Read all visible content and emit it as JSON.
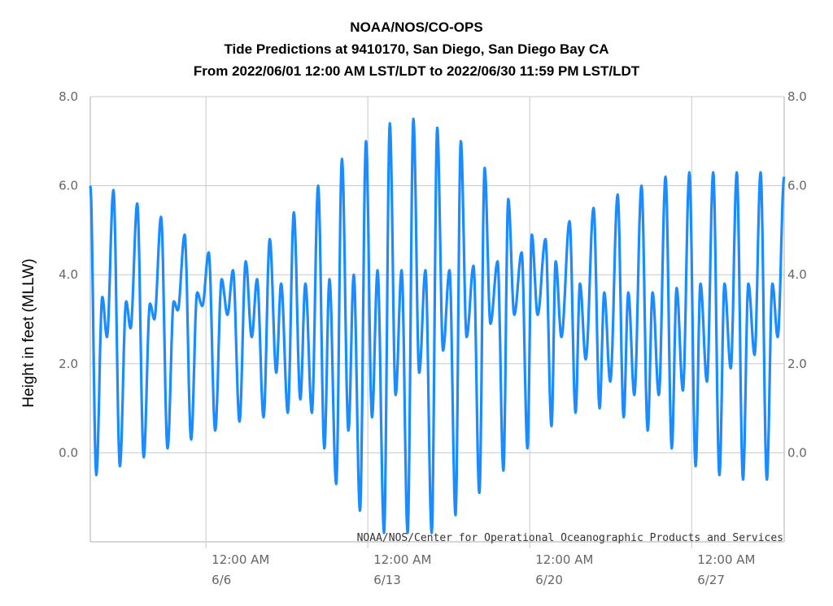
{
  "titles": {
    "line1": "NOAA/NOS/CO-OPS",
    "line2": "Tide Predictions at 9410170, San Diego, San Diego Bay CA",
    "line3": "From 2022/06/01 12:00 AM LST/LDT to 2022/06/30 11:59 PM LST/LDT"
  },
  "credit": "NOAA/NOS/Center for Operational Oceanographic Products and Services",
  "colors": {
    "series": "#1a8cff",
    "grid": "#c8c8c8",
    "axis_text": "#666666"
  },
  "chart_data": {
    "type": "line",
    "title": "Tide Predictions at 9410170, San Diego, San Diego Bay CA",
    "ylabel": "Height in feet (MLLW)",
    "ylim": [
      -2.0,
      8.0
    ],
    "y_ticks": [
      "8.0",
      "6.0",
      "4.0",
      "2.0",
      "0.0"
    ],
    "y_tick_values": [
      8,
      6,
      4,
      2,
      0
    ],
    "x_range_days": [
      1,
      31
    ],
    "x_ticks": [
      {
        "day": 6,
        "time": "12:00 AM",
        "date": "6/6"
      },
      {
        "day": 13,
        "time": "12:00 AM",
        "date": "6/13"
      },
      {
        "day": 20,
        "time": "12:00 AM",
        "date": "6/20"
      },
      {
        "day": 27,
        "time": "12:00 AM",
        "date": "6/27"
      }
    ],
    "grid": true,
    "series": [
      {
        "color": "#1a8cff",
        "extrema": [
          [
            1.0,
            6.0
          ],
          [
            1.26,
            -0.5
          ],
          [
            1.52,
            3.5
          ],
          [
            1.72,
            2.6
          ],
          [
            2.0,
            5.9
          ],
          [
            2.28,
            -0.3
          ],
          [
            2.55,
            3.4
          ],
          [
            2.74,
            2.8
          ],
          [
            3.03,
            5.6
          ],
          [
            3.31,
            -0.1
          ],
          [
            3.58,
            3.35
          ],
          [
            3.77,
            3.0
          ],
          [
            4.06,
            5.3
          ],
          [
            4.34,
            0.1
          ],
          [
            4.61,
            3.4
          ],
          [
            4.78,
            3.2
          ],
          [
            5.08,
            4.9
          ],
          [
            5.36,
            0.3
          ],
          [
            5.62,
            3.6
          ],
          [
            5.84,
            3.3
          ],
          [
            6.12,
            4.5
          ],
          [
            6.4,
            0.5
          ],
          [
            6.68,
            3.9
          ],
          [
            6.93,
            3.1
          ],
          [
            7.17,
            4.1
          ],
          [
            7.45,
            0.7
          ],
          [
            7.72,
            4.3
          ],
          [
            7.98,
            2.6
          ],
          [
            8.21,
            3.9
          ],
          [
            8.49,
            0.8
          ],
          [
            8.76,
            4.8
          ],
          [
            9.04,
            1.8
          ],
          [
            9.25,
            3.8
          ],
          [
            9.54,
            0.9
          ],
          [
            9.8,
            5.4
          ],
          [
            10.08,
            1.2
          ],
          [
            10.3,
            3.8
          ],
          [
            10.58,
            0.9
          ],
          [
            10.85,
            6.0
          ],
          [
            11.12,
            0.1
          ],
          [
            11.34,
            3.9
          ],
          [
            11.63,
            -0.7
          ],
          [
            11.88,
            6.6
          ],
          [
            12.16,
            0.5
          ],
          [
            12.39,
            4.0
          ],
          [
            12.66,
            -1.3
          ],
          [
            12.92,
            7.0
          ],
          [
            13.18,
            0.8
          ],
          [
            13.42,
            4.1
          ],
          [
            13.7,
            -1.8
          ],
          [
            13.95,
            7.4
          ],
          [
            14.2,
            1.3
          ],
          [
            14.46,
            4.1
          ],
          [
            14.72,
            -1.8
          ],
          [
            14.97,
            7.5
          ],
          [
            15.22,
            1.8
          ],
          [
            15.49,
            4.1
          ],
          [
            15.76,
            -1.8
          ],
          [
            16.0,
            7.3
          ],
          [
            16.25,
            2.3
          ],
          [
            16.53,
            4.1
          ],
          [
            16.79,
            -1.4
          ],
          [
            17.02,
            7.0
          ],
          [
            17.27,
            2.6
          ],
          [
            17.57,
            4.2
          ],
          [
            17.82,
            -0.9
          ],
          [
            18.05,
            6.4
          ],
          [
            18.3,
            2.9
          ],
          [
            18.61,
            4.3
          ],
          [
            18.86,
            -0.4
          ],
          [
            19.07,
            5.7
          ],
          [
            19.33,
            3.1
          ],
          [
            19.65,
            4.5
          ],
          [
            19.9,
            0.1
          ],
          [
            20.09,
            4.9
          ],
          [
            20.34,
            3.1
          ],
          [
            20.68,
            4.8
          ],
          [
            20.94,
            0.6
          ],
          [
            21.12,
            4.3
          ],
          [
            21.37,
            2.6
          ],
          [
            21.72,
            5.2
          ],
          [
            21.98,
            0.9
          ],
          [
            22.17,
            3.8
          ],
          [
            22.42,
            2.1
          ],
          [
            22.76,
            5.5
          ],
          [
            23.02,
            1.0
          ],
          [
            23.22,
            3.6
          ],
          [
            23.48,
            1.6
          ],
          [
            23.8,
            5.8
          ],
          [
            24.06,
            0.8
          ],
          [
            24.26,
            3.6
          ],
          [
            24.52,
            1.3
          ],
          [
            24.83,
            6.0
          ],
          [
            25.1,
            0.5
          ],
          [
            25.31,
            3.6
          ],
          [
            25.58,
            1.3
          ],
          [
            25.87,
            6.2
          ],
          [
            26.14,
            0.1
          ],
          [
            26.35,
            3.7
          ],
          [
            26.62,
            1.4
          ],
          [
            26.9,
            6.3
          ],
          [
            27.17,
            -0.3
          ],
          [
            27.38,
            3.8
          ],
          [
            27.66,
            1.6
          ],
          [
            27.93,
            6.3
          ],
          [
            28.2,
            -0.5
          ],
          [
            28.42,
            3.8
          ],
          [
            28.69,
            1.9
          ],
          [
            28.95,
            6.3
          ],
          [
            29.22,
            -0.6
          ],
          [
            29.45,
            3.8
          ],
          [
            29.72,
            2.2
          ],
          [
            29.98,
            6.3
          ],
          [
            30.25,
            -0.6
          ],
          [
            30.49,
            3.8
          ],
          [
            30.72,
            2.6
          ],
          [
            31.0,
            6.2
          ]
        ]
      }
    ]
  }
}
